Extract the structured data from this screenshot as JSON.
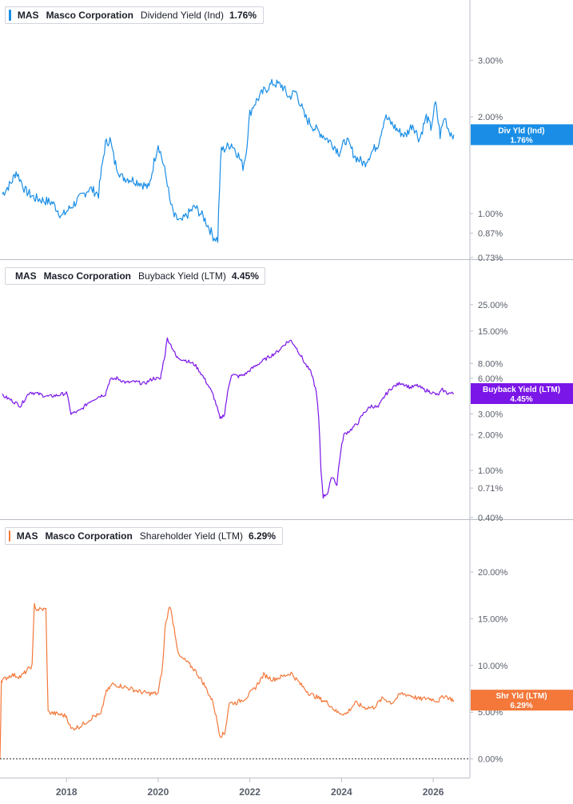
{
  "colors": {
    "dividend": "#1a8ee6",
    "buyback": "#7b16e8",
    "shareholder": "#f3783a",
    "axis_text": "#585e6a",
    "grid": "#c9ccd2"
  },
  "legends": [
    {
      "ticker": "MAS",
      "company": "Masco Corporation",
      "metric": "Dividend Yield (Ind)",
      "value": "1.76%"
    },
    {
      "ticker": "MAS",
      "company": "Masco Corporation",
      "metric": "Buyback Yield (LTM)",
      "value": "4.45%"
    },
    {
      "ticker": "MAS",
      "company": "Masco Corporation",
      "metric": "Shareholder Yield (LTM)",
      "value": "6.29%"
    }
  ],
  "chart_data": [
    {
      "type": "line",
      "title": "",
      "series": [
        {
          "name": "Dividend Yield (Ind)",
          "x": [
            2016.6,
            2016.8,
            2016.9,
            2017.0,
            2017.1,
            2017.3,
            2017.5,
            2017.7,
            2017.9,
            2018.1,
            2018.3,
            2018.5,
            2018.7,
            2018.85,
            2018.95,
            2019.05,
            2019.2,
            2019.4,
            2019.6,
            2019.8,
            2020.0,
            2020.1,
            2020.2,
            2020.25,
            2020.35,
            2020.5,
            2020.6,
            2020.8,
            2021.0,
            2021.2,
            2021.3,
            2021.38,
            2021.42,
            2021.6,
            2021.75,
            2021.85,
            2021.92,
            2022.0,
            2022.1,
            2022.3,
            2022.5,
            2022.7,
            2022.85,
            2023.0,
            2023.2,
            2023.4,
            2023.6,
            2023.8,
            2023.95,
            2024.1,
            2024.3,
            2024.5,
            2024.65,
            2024.8,
            2024.95,
            2025.1,
            2025.25,
            2025.4,
            2025.55,
            2025.7,
            2025.85,
            2025.95,
            2026.05,
            2026.15,
            2026.25,
            2026.35,
            2026.45
          ],
          "y": [
            1.15,
            1.25,
            1.35,
            1.27,
            1.18,
            1.12,
            1.1,
            1.08,
            0.98,
            1.05,
            1.12,
            1.2,
            1.15,
            1.65,
            1.7,
            1.45,
            1.3,
            1.28,
            1.25,
            1.2,
            1.65,
            1.45,
            1.25,
            1.1,
            0.98,
            0.94,
            0.98,
            1.05,
            0.97,
            0.85,
            0.83,
            1.6,
            1.58,
            1.65,
            1.52,
            1.4,
            1.55,
            2.05,
            2.2,
            2.4,
            2.55,
            2.5,
            2.3,
            2.4,
            2.0,
            1.85,
            1.75,
            1.65,
            1.55,
            1.7,
            1.5,
            1.43,
            1.55,
            1.65,
            2.0,
            1.9,
            1.8,
            1.75,
            1.9,
            1.7,
            2.0,
            1.85,
            2.2,
            1.75,
            2.0,
            1.8,
            1.76
          ]
        }
      ],
      "y_axis_ticks": [
        "3.00%",
        "2.00%",
        "1.00%",
        "0.87%",
        "0.73%"
      ],
      "y_scale": "log",
      "ylim": [
        0.73,
        3.8
      ],
      "price_tag": {
        "label": "Div Yld (Ind)",
        "value": "1.76%"
      }
    },
    {
      "type": "line",
      "title": "",
      "series": [
        {
          "name": "Buyback Yield (LTM)",
          "x": [
            2016.6,
            2016.8,
            2017.0,
            2017.2,
            2017.4,
            2017.6,
            2017.8,
            2018.0,
            2018.1,
            2018.3,
            2018.5,
            2018.7,
            2018.85,
            2018.95,
            2019.1,
            2019.3,
            2019.5,
            2019.7,
            2019.9,
            2020.05,
            2020.15,
            2020.2,
            2020.3,
            2020.4,
            2020.6,
            2020.8,
            2021.0,
            2021.2,
            2021.35,
            2021.45,
            2021.6,
            2021.75,
            2021.9,
            2022.0,
            2022.2,
            2022.4,
            2022.6,
            2022.8,
            2022.9,
            2023.0,
            2023.2,
            2023.35,
            2023.45,
            2023.55,
            2023.6,
            2023.7,
            2023.8,
            2023.9,
            2024.05,
            2024.2,
            2024.35,
            2024.5,
            2024.65,
            2024.8,
            2024.95,
            2025.1,
            2025.3,
            2025.5,
            2025.65,
            2025.8,
            2025.95,
            2026.1,
            2026.2,
            2026.3,
            2026.45
          ],
          "y": [
            4.3,
            3.9,
            3.5,
            4.6,
            4.4,
            4.2,
            4.3,
            4.5,
            3.0,
            3.2,
            3.8,
            4.2,
            4.4,
            5.8,
            6.0,
            5.5,
            5.6,
            5.4,
            6.0,
            5.9,
            9.5,
            13.0,
            11.0,
            9.0,
            8.5,
            7.8,
            6.0,
            4.3,
            2.7,
            3.0,
            6.5,
            6.2,
            6.5,
            7.0,
            8.0,
            9.0,
            10.0,
            12.0,
            12.5,
            11.0,
            8.0,
            6.5,
            4.5,
            1.0,
            0.6,
            0.65,
            0.9,
            0.75,
            2.0,
            2.2,
            2.5,
            3.1,
            3.5,
            3.4,
            4.3,
            5.0,
            5.5,
            5.0,
            5.2,
            4.8,
            4.6,
            4.3,
            4.8,
            4.5,
            4.45
          ]
        }
      ],
      "y_axis_ticks": [
        "25.00%",
        "15.00%",
        "8.00%",
        "6.00%",
        "3.00%",
        "2.00%",
        "1.00%",
        "0.71%",
        "0.40%"
      ],
      "y_scale": "log",
      "ylim": [
        0.4,
        38
      ],
      "price_tag": {
        "label": "Buyback Yield (LTM)",
        "value": "4.45%"
      }
    },
    {
      "type": "line",
      "title": "",
      "series": [
        {
          "name": "Shareholder Yield (LTM)",
          "x": [
            2016.55,
            2016.58,
            2016.6,
            2016.8,
            2017.0,
            2017.15,
            2017.25,
            2017.3,
            2017.35,
            2017.55,
            2017.6,
            2017.8,
            2018.0,
            2018.1,
            2018.3,
            2018.5,
            2018.6,
            2018.75,
            2018.85,
            2019.0,
            2019.2,
            2019.4,
            2019.6,
            2019.8,
            2020.0,
            2020.1,
            2020.15,
            2020.25,
            2020.35,
            2020.45,
            2020.6,
            2020.8,
            2021.0,
            2021.2,
            2021.35,
            2021.45,
            2021.55,
            2021.7,
            2021.9,
            2022.1,
            2022.3,
            2022.5,
            2022.7,
            2022.9,
            2023.1,
            2023.3,
            2023.5,
            2023.7,
            2023.9,
            2024.1,
            2024.3,
            2024.5,
            2024.7,
            2024.9,
            2025.1,
            2025.3,
            2025.5,
            2025.7,
            2025.9,
            2026.1,
            2026.25,
            2026.35,
            2026.45
          ],
          "y": [
            0.0,
            8.4,
            8.4,
            9.0,
            8.8,
            9.5,
            10.0,
            16.5,
            16.0,
            16.0,
            5.0,
            4.8,
            4.6,
            3.2,
            3.5,
            4.2,
            4.6,
            4.7,
            7.0,
            8.0,
            7.8,
            7.5,
            7.2,
            7.0,
            7.0,
            10.0,
            14.0,
            16.5,
            14.0,
            11.0,
            10.5,
            9.5,
            8.0,
            6.0,
            2.5,
            2.7,
            6.0,
            6.0,
            6.5,
            7.5,
            9.0,
            8.5,
            8.8,
            9.2,
            8.0,
            7.0,
            6.5,
            6.0,
            5.0,
            4.8,
            6.0,
            5.5,
            5.5,
            6.5,
            6.0,
            7.0,
            6.8,
            6.4,
            6.5,
            6.2,
            6.8,
            6.5,
            6.29
          ]
        }
      ],
      "y_axis_ticks": [
        "20.00%",
        "15.00%",
        "10.00%",
        "5.00%",
        "0.00%"
      ],
      "y_scale": "linear",
      "ylim": [
        -2.0,
        23.0
      ],
      "price_tag": {
        "label": "Shr Yld (LTM)",
        "value": "6.29%"
      }
    }
  ],
  "x_axis_ticks": [
    "2018",
    "2020",
    "2022",
    "2024",
    "2026"
  ],
  "x_axis_tick_values": [
    2018,
    2020,
    2022,
    2024,
    2026
  ],
  "xlim": [
    2016.55,
    2026.8
  ],
  "grid": false,
  "legend_position": "top-left"
}
